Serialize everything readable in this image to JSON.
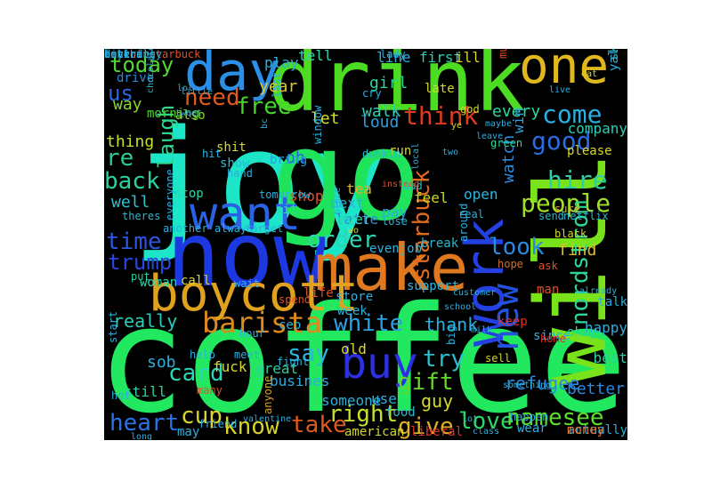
{
  "words": [
    {
      "text": "joy",
      "color": "#1de5c8",
      "dir": "h"
    },
    {
      "text": "go",
      "color": "#1fe35a",
      "dir": "h"
    },
    {
      "text": "coffee",
      "color": "#22e860",
      "dir": "h"
    },
    {
      "text": "drink",
      "color": "#4cdc21",
      "dir": "h"
    },
    {
      "text": "will",
      "color": "#78e21a",
      "dir": "v"
    },
    {
      "text": "now",
      "color": "#1c38e0",
      "dir": "h"
    },
    {
      "text": "make",
      "color": "#e07820",
      "dir": "h"
    },
    {
      "text": "one",
      "color": "#e0b81e",
      "dir": "h"
    },
    {
      "text": "day",
      "color": "#2b8fe8",
      "dir": "h"
    },
    {
      "text": "boycott",
      "color": "#e0a21e",
      "dir": "h"
    },
    {
      "text": "want",
      "color": "#2a62e6",
      "dir": "h"
    },
    {
      "text": "work",
      "color": "#2540e0",
      "dir": "v"
    },
    {
      "text": "new",
      "color": "#2252e0",
      "dir": "v"
    },
    {
      "text": "buy",
      "color": "#2d30e2",
      "dir": "h"
    },
    {
      "text": "today",
      "color": "#52d830",
      "dir": "h"
    },
    {
      "text": "need",
      "color": "#e05a1e",
      "dir": "h"
    },
    {
      "text": "free",
      "color": "#44d62c",
      "dir": "h"
    },
    {
      "text": "us",
      "color": "#2a66e0",
      "dir": "h"
    },
    {
      "text": "way",
      "color": "#88d82a",
      "dir": "h"
    },
    {
      "text": "laugh",
      "color": "#2fd68e",
      "dir": "v"
    },
    {
      "text": "re",
      "color": "#2acd8c",
      "dir": "h"
    },
    {
      "text": "back",
      "color": "#2bd2a0",
      "dir": "h"
    },
    {
      "text": "thing",
      "color": "#c0e22a",
      "dir": "h"
    },
    {
      "text": "well",
      "color": "#28c4d4",
      "dir": "h"
    },
    {
      "text": "time",
      "color": "#2a56e2",
      "dir": "h"
    },
    {
      "text": "trump",
      "color": "#2a46e0",
      "dir": "h"
    },
    {
      "text": "barista",
      "color": "#dc8a1e",
      "dir": "h"
    },
    {
      "text": "white",
      "color": "#2aa0e2",
      "dir": "h"
    },
    {
      "text": "think",
      "color": "#e03a1e",
      "dir": "h"
    },
    {
      "text": "come",
      "color": "#2ab0e0",
      "dir": "h"
    },
    {
      "text": "good",
      "color": "#2a6ae2",
      "dir": "h"
    },
    {
      "text": "hire",
      "color": "#2ad0a8",
      "dir": "h"
    },
    {
      "text": "people",
      "color": "#a0e02a",
      "dir": "h"
    },
    {
      "text": "starbuck",
      "color": "#e06a1e",
      "dir": "v"
    },
    {
      "text": "nordstrom",
      "color": "#2ad894",
      "dir": "v"
    },
    {
      "text": "order",
      "color": "#2ad8b0",
      "dir": "h"
    },
    {
      "text": "look",
      "color": "#2a8ae0",
      "dir": "h"
    },
    {
      "text": "find",
      "color": "#e0c02a",
      "dir": "h"
    },
    {
      "text": "heart",
      "color": "#2a72e2",
      "dir": "h"
    },
    {
      "text": "card",
      "color": "#2ad6b8",
      "dir": "h"
    },
    {
      "text": "cup",
      "color": "#dcd42a",
      "dir": "h"
    },
    {
      "text": "know",
      "color": "#d6d42a",
      "dir": "h"
    },
    {
      "text": "take",
      "color": "#e05a1e",
      "dir": "h"
    },
    {
      "text": "right",
      "color": "#c8e02a",
      "dir": "h"
    },
    {
      "text": "say",
      "color": "#2ab8e0",
      "dir": "h"
    },
    {
      "text": "try",
      "color": "#2ac0d0",
      "dir": "h"
    },
    {
      "text": "gift",
      "color": "#64d82a",
      "dir": "h"
    },
    {
      "text": "love",
      "color": "#2ad868",
      "dir": "h"
    },
    {
      "text": "namesee",
      "color": "#5ae02a",
      "dir": "h"
    },
    {
      "text": "refugee",
      "color": "#2a8ae0",
      "dir": "h"
    },
    {
      "text": "better",
      "color": "#2a88e0",
      "dir": "h"
    },
    {
      "text": "give",
      "color": "#e0b02a",
      "dir": "h"
    },
    {
      "text": "guy",
      "color": "#d4d82a",
      "dir": "h"
    },
    {
      "text": "thank",
      "color": "#2ab0e0",
      "dir": "h"
    },
    {
      "text": "really",
      "color": "#2acdb8",
      "dir": "h"
    },
    {
      "text": "sob",
      "color": "#2ab0e0",
      "dir": "h"
    },
    {
      "text": "every",
      "color": "#2ad8a0",
      "dir": "h"
    },
    {
      "text": "let",
      "color": "#d4e02a",
      "dir": "h"
    },
    {
      "text": "year",
      "color": "#e0c82a",
      "dir": "h"
    },
    {
      "text": "oh",
      "color": "#2a60e0",
      "dir": "h"
    },
    {
      "text": "line",
      "color": "#2ab0e0",
      "dir": "h"
    },
    {
      "text": "first",
      "color": "#2ad0b0",
      "dir": "h"
    },
    {
      "text": "ill",
      "color": "#d4d82a",
      "dir": "h"
    },
    {
      "text": "girl",
      "color": "#2ad8a0",
      "dir": "h"
    },
    {
      "text": "walk",
      "color": "#2ad0b8",
      "dir": "h"
    },
    {
      "text": "loud",
      "color": "#2aa0e0",
      "dir": "h"
    },
    {
      "text": "play",
      "color": "#2ab0d8",
      "dir": "h"
    },
    {
      "text": "tell",
      "color": "#2ad8b0",
      "dir": "h"
    },
    {
      "text": "drive",
      "color": "#2a8ad8",
      "dir": "h"
    },
    {
      "text": "morning",
      "color": "#4ad82a",
      "dir": "h"
    },
    {
      "text": "also",
      "color": "#8ad82a",
      "dir": "h"
    },
    {
      "text": "shit",
      "color": "#d8d82a",
      "dir": "h"
    },
    {
      "text": "show",
      "color": "#2ab8d8",
      "dir": "h"
    },
    {
      "text": "stop",
      "color": "#2ad8a8",
      "dir": "h"
    },
    {
      "text": "bring",
      "color": "#2a9ae0",
      "dir": "h"
    },
    {
      "text": "shop",
      "color": "#e0502a",
      "dir": "h"
    },
    {
      "text": "tea",
      "color": "#e0b02a",
      "dir": "h"
    },
    {
      "text": "next",
      "color": "#2ab0e0",
      "dir": "h"
    },
    {
      "text": "latte",
      "color": "#2a8ae0",
      "dir": "h"
    },
    {
      "text": "ever",
      "color": "#2ad8b0",
      "dir": "h"
    },
    {
      "text": "pay",
      "color": "#2ab0e0",
      "dir": "h"
    },
    {
      "text": "feel",
      "color": "#c8d82a",
      "dir": "h"
    },
    {
      "text": "run",
      "color": "#d4d82a",
      "dir": "h"
    },
    {
      "text": "sit",
      "color": "#2ad8a0",
      "dir": "h"
    },
    {
      "text": "open",
      "color": "#2ab8e0",
      "dir": "h"
    },
    {
      "text": "watch",
      "color": "#2a8ae0",
      "dir": "v"
    },
    {
      "text": "win",
      "color": "#2aa0e0",
      "dir": "v"
    },
    {
      "text": "company",
      "color": "#2ad0b0",
      "dir": "h"
    },
    {
      "text": "please",
      "color": "#d4d82a",
      "dir": "h"
    },
    {
      "text": "break",
      "color": "#2ab8d0",
      "dir": "h"
    },
    {
      "text": "support",
      "color": "#2ab8e0",
      "dir": "h"
    },
    {
      "text": "store",
      "color": "#2ab0e0",
      "dir": "h"
    },
    {
      "text": "evenjob",
      "color": "#2ab8e0",
      "dir": "h"
    },
    {
      "text": "life",
      "color": "#e0502a",
      "dir": "h"
    },
    {
      "text": "week",
      "color": "#2ab8e0",
      "dir": "h"
    },
    {
      "text": "ceo",
      "color": "#2ab8e0",
      "dir": "h"
    },
    {
      "text": "put",
      "color": "#2ad0a0",
      "dir": "h"
    },
    {
      "text": "call",
      "color": "#d4d82a",
      "dir": "h"
    },
    {
      "text": "woman",
      "color": "#2ad8b0",
      "dir": "h"
    },
    {
      "text": "wait",
      "color": "#2ab0e0",
      "dir": "h"
    },
    {
      "text": "spend",
      "color": "#e0502a",
      "dir": "h"
    },
    {
      "text": "old",
      "color": "#d4d82a",
      "dir": "h"
    },
    {
      "text": "someone",
      "color": "#2ab0e0",
      "dir": "h"
    },
    {
      "text": "use",
      "color": "#2ab0e0",
      "dir": "h"
    },
    {
      "text": "busines",
      "color": "#2ab0e0",
      "dir": "h"
    },
    {
      "text": "great",
      "color": "#2ad0a0",
      "dir": "h"
    },
    {
      "text": "fuck",
      "color": "#d4d82a",
      "dir": "h"
    },
    {
      "text": "still",
      "color": "#2ad0a0",
      "dir": "h"
    },
    {
      "text": "may",
      "color": "#2ab0e0",
      "dir": "h"
    },
    {
      "text": "american",
      "color": "#d4d82a",
      "dir": "h"
    },
    {
      "text": "food",
      "color": "#2ab8d0",
      "dir": "h"
    },
    {
      "text": "liberal",
      "color": "#e0302a",
      "dir": "h"
    },
    {
      "text": "wear",
      "color": "#2ab0e0",
      "dir": "h"
    },
    {
      "text": "actually",
      "color": "#2ab0e0",
      "dir": "h"
    },
    {
      "text": "money",
      "color": "#e0702a",
      "dir": "h"
    },
    {
      "text": "best",
      "color": "#2ad0a0",
      "dir": "h"
    },
    {
      "text": "since",
      "color": "#2ab0e0",
      "dir": "h"
    },
    {
      "text": "okay",
      "color": "#2ad8a0",
      "dir": "h"
    },
    {
      "text": "happy",
      "color": "#2ab0e0",
      "dir": "h"
    },
    {
      "text": "talk",
      "color": "#2ab0e0",
      "dir": "h"
    },
    {
      "text": "man",
      "color": "#e0502a",
      "dir": "h"
    },
    {
      "text": "ask",
      "color": "#e0502a",
      "dir": "h"
    },
    {
      "text": "black",
      "color": "#d4d82a",
      "dir": "h"
    },
    {
      "text": "netflix",
      "color": "#2ab8d0",
      "dir": "h"
    },
    {
      "text": "sure",
      "color": "#d4b02a",
      "dir": "h"
    },
    {
      "text": "happen",
      "color": "#2ab0e0",
      "dir": "h"
    },
    {
      "text": "sell",
      "color": "#d4d82a",
      "dir": "h"
    },
    {
      "text": "home",
      "color": "#e0302a",
      "dir": "h"
    },
    {
      "text": "keep",
      "color": "#e0302a",
      "dir": "h"
    },
    {
      "text": "hope",
      "color": "#d4702a",
      "dir": "h"
    },
    {
      "text": "send",
      "color": "#2ab8d0",
      "dir": "h"
    },
    {
      "text": "much",
      "color": "#e0502a",
      "dir": "v"
    },
    {
      "text": "skintone3",
      "color": "#2ab8d0",
      "dir": "v"
    },
    {
      "text": "yall",
      "color": "#2ab0e0",
      "dir": "v"
    },
    {
      "text": "lady",
      "color": "#2ab0e0",
      "dir": "h"
    },
    {
      "text": "late",
      "color": "#d4d82a",
      "dir": "h"
    },
    {
      "text": "god",
      "color": "#d4d82a",
      "dir": "h"
    },
    {
      "text": "green",
      "color": "#2ad8a0",
      "dir": "h"
    },
    {
      "text": "cry",
      "color": "#2ab0e0",
      "dir": "h"
    },
    {
      "text": "last",
      "color": "#2ab0e0",
      "dir": "v"
    },
    {
      "text": "chocolate",
      "color": "#2ab8d0",
      "dir": "v"
    },
    {
      "text": "little",
      "color": "#2ab0e0",
      "dir": "h"
    },
    {
      "text": "tweet",
      "color": "#2ab0e0",
      "dir": "h"
    },
    {
      "text": "lol",
      "color": "#2ab0e0",
      "dir": "h"
    },
    {
      "text": "hit",
      "color": "#2ab0e0",
      "dir": "h"
    },
    {
      "text": "hand",
      "color": "#2ab0e0",
      "dir": "h"
    },
    {
      "text": "tomorrow",
      "color": "#2ab0e0",
      "dir": "h"
    },
    {
      "text": "window",
      "color": "#2ab0e0",
      "dir": "v"
    },
    {
      "text": "dunkin",
      "color": "#2ab8d0",
      "dir": "h"
    },
    {
      "text": "bad",
      "color": "#2ab8d0",
      "dir": "h"
    },
    {
      "text": "lose",
      "color": "#2ab8d0",
      "dir": "h"
    },
    {
      "text": "real",
      "color": "#2ab0e0",
      "dir": "h"
    },
    {
      "text": "around",
      "color": "#2ab0e0",
      "dir": "v"
    },
    {
      "text": "always",
      "color": "#2ab0e0",
      "dir": "h"
    },
    {
      "text": "target",
      "color": "#2ab0e0",
      "dir": "h"
    },
    {
      "text": "theres",
      "color": "#2ab8d0",
      "dir": "h"
    },
    {
      "text": "everyone",
      "color": "#2ab0e0",
      "dir": "v"
    },
    {
      "text": "another",
      "color": "#2ab0e0",
      "dir": "h"
    },
    {
      "text": "help",
      "color": "#2ab0e0",
      "dir": "h"
    },
    {
      "text": "meet",
      "color": "#2ab0e0",
      "dir": "h"
    },
    {
      "text": "many",
      "color": "#e0502a",
      "dir": "h"
    },
    {
      "text": "hot",
      "color": "#2ab0e0",
      "dir": "h"
    },
    {
      "text": "start",
      "color": "#2ab0e0",
      "dir": "v"
    },
    {
      "text": "hour",
      "color": "#2ab0e0",
      "dir": "h"
    },
    {
      "text": "fight",
      "color": "#2ab0e0",
      "dir": "h"
    },
    {
      "text": "anyone",
      "color": "#d4a02a",
      "dir": "v"
    },
    {
      "text": "friend",
      "color": "#2ab0e0",
      "dir": "h"
    },
    {
      "text": "valentine",
      "color": "#2ab0e0",
      "dir": "h"
    },
    {
      "text": "long",
      "color": "#2ab0e0",
      "dir": "h"
    },
    {
      "text": "something",
      "color": "#2ab0e0",
      "dir": "h"
    },
    {
      "text": "lot",
      "color": "#2ab0e0",
      "dir": "h"
    },
    {
      "text": "class",
      "color": "#2ab0e0",
      "dir": "h"
    },
    {
      "text": "milk",
      "color": "#2ab0e0",
      "dir": "h"
    },
    {
      "text": "school",
      "color": "#2ab0e0",
      "dir": "h"
    },
    {
      "text": "big",
      "color": "#2ab0e0",
      "dir": "v"
    },
    {
      "text": "customer",
      "color": "#2ab0e0",
      "dir": "h"
    },
    {
      "text": "already",
      "color": "#2ab0e0",
      "dir": "h"
    },
    {
      "text": "maybe",
      "color": "#2ab0e0",
      "dir": "h"
    },
    {
      "text": "ye",
      "color": "#d4d82a",
      "dir": "h"
    },
    {
      "text": "two",
      "color": "#2ab0e0",
      "dir": "h"
    },
    {
      "text": "local",
      "color": "#2ab0e0",
      "dir": "v"
    },
    {
      "text": "instead",
      "color": "#e0502a",
      "dir": "h"
    },
    {
      "text": "leave",
      "color": "#2ab0e0",
      "dir": "h"
    },
    {
      "text": "live",
      "color": "#2ab0e0",
      "dir": "h"
    },
    {
      "text": "eat",
      "color": "#d4d82a",
      "dir": "h"
    },
    {
      "text": "bc",
      "color": "#2ab0e0",
      "dir": "v"
    },
    {
      "text": "wo",
      "color": "#d4d82a",
      "dir": "h"
    },
    {
      "text": "place",
      "color": "#2ab0e0",
      "dir": "v"
    },
    {
      "text": "boycottstarbuck",
      "color": "#e0502a",
      "dir": "h"
    },
    {
      "text": "duck",
      "color": "#2ab0e0",
      "dir": "h"
    },
    {
      "text": "behind",
      "color": "#2ab0e0",
      "dir": "h"
    },
    {
      "text": "literally",
      "color": "#2ab0e0",
      "dir": "h"
    },
    {
      "text": "anything",
      "color": "#2ab0e0",
      "dir": "h"
    }
  ]
}
